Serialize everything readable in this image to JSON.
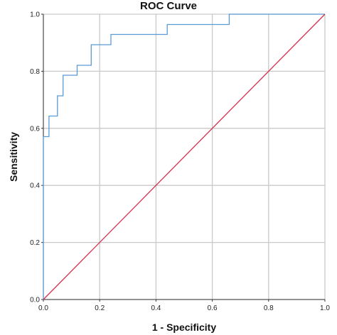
{
  "chart_data": {
    "type": "line",
    "title": "ROC Curve",
    "xlabel": "1 - Specificity",
    "ylabel": "Sensitivity",
    "xlim": [
      0,
      1
    ],
    "ylim": [
      0,
      1
    ],
    "x_ticks": [
      "0.0",
      "0.2",
      "0.4",
      "0.6",
      "0.8",
      "1.0"
    ],
    "y_ticks": [
      "0.0",
      "0.2",
      "0.4",
      "0.6",
      "0.8",
      "1.0"
    ],
    "grid": true,
    "series": [
      {
        "style": "step",
        "color": "#5b9bd5",
        "x": [
          0.0,
          0.0,
          0.02,
          0.02,
          0.05,
          0.05,
          0.07,
          0.07,
          0.12,
          0.12,
          0.17,
          0.17,
          0.24,
          0.24,
          0.44,
          0.44,
          0.66,
          0.66,
          1.0
        ],
        "y": [
          0.0,
          0.571,
          0.571,
          0.643,
          0.643,
          0.714,
          0.714,
          0.786,
          0.786,
          0.821,
          0.821,
          0.893,
          0.893,
          0.929,
          0.929,
          0.964,
          0.964,
          1.0,
          1.0
        ]
      },
      {
        "style": "reference",
        "color": "#d6304f",
        "x": [
          0,
          1
        ],
        "y": [
          0,
          1
        ]
      }
    ]
  }
}
